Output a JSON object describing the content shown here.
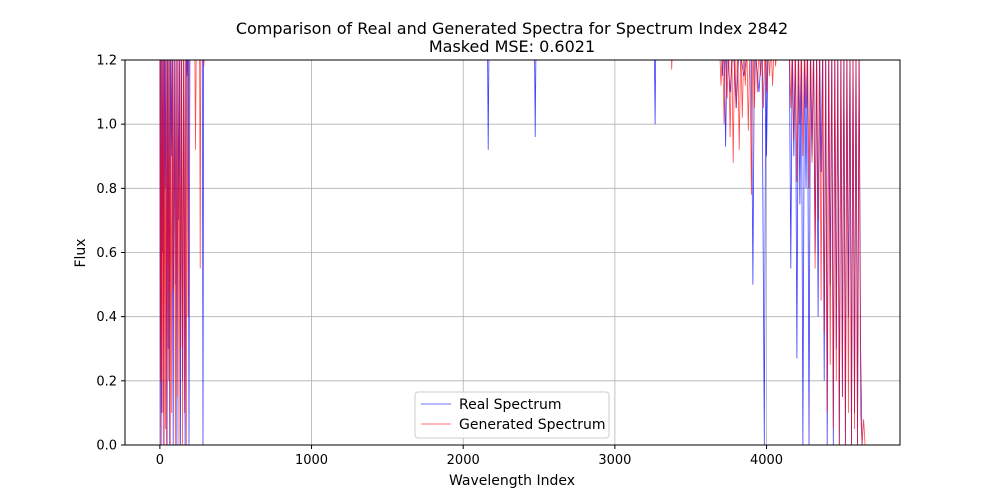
{
  "chart_data": {
    "type": "line",
    "title": "Comparison of Real and Generated Spectra for Spectrum Index 2842",
    "subtitle": "Masked MSE: 0.6021",
    "xlabel": "Wavelength Index",
    "ylabel": "Flux",
    "xlim": [
      -230,
      4880
    ],
    "ylim": [
      0.0,
      1.2
    ],
    "xticks": [
      0,
      1000,
      2000,
      3000,
      4000
    ],
    "yticks": [
      0.0,
      0.2,
      0.4,
      0.6,
      0.8,
      1.0,
      1.2
    ],
    "xtick_labels": [
      "0",
      "1000",
      "2000",
      "3000",
      "4000"
    ],
    "ytick_labels": [
      "0.0",
      "0.2",
      "0.4",
      "0.6",
      "0.8",
      "1.0",
      "1.2"
    ],
    "grid": true,
    "legend_position": "lower-center",
    "series": [
      {
        "name": "Real Spectrum",
        "color": "#0000ff",
        "segments": [
          [
            [
              0,
              1.25
            ],
            [
              3,
              0.0
            ],
            [
              6,
              1.25
            ],
            [
              10,
              0.1
            ],
            [
              14,
              1.25
            ],
            [
              18,
              0.6
            ],
            [
              22,
              1.25
            ],
            [
              26,
              0.0
            ],
            [
              30,
              1.25
            ],
            [
              35,
              0.8
            ],
            [
              40,
              1.25
            ],
            [
              45,
              0.0
            ],
            [
              50,
              1.25
            ],
            [
              55,
              0.3
            ],
            [
              60,
              1.25
            ],
            [
              65,
              0.0
            ],
            [
              70,
              1.25
            ],
            [
              76,
              0.9
            ],
            [
              82,
              1.25
            ],
            [
              88,
              0.0
            ],
            [
              94,
              1.25
            ],
            [
              100,
              0.5
            ],
            [
              106,
              1.25
            ],
            [
              112,
              0.0
            ],
            [
              118,
              1.25
            ],
            [
              124,
              0.7
            ],
            [
              130,
              1.25
            ],
            [
              136,
              0.0
            ],
            [
              142,
              1.25
            ],
            [
              150,
              0.2
            ],
            [
              158,
              1.25
            ],
            [
              166,
              0.0
            ],
            [
              174,
              1.25
            ],
            [
              180,
              1.15
            ],
            [
              186,
              1.25
            ],
            [
              192,
              0.0
            ],
            [
              198,
              1.25
            ]
          ],
          [
            [
              280,
              1.25
            ],
            [
              284,
              0.0
            ],
            [
              288,
              1.25
            ]
          ],
          [
            [
              2160,
              1.25
            ],
            [
              2165,
              0.92
            ],
            [
              2170,
              1.25
            ]
          ],
          [
            [
              2470,
              1.25
            ],
            [
              2475,
              0.96
            ],
            [
              2480,
              1.25
            ]
          ],
          [
            [
              3260,
              1.25
            ],
            [
              3265,
              1.0
            ],
            [
              3270,
              1.25
            ]
          ],
          [
            [
              3700,
              1.25
            ],
            [
              3710,
              1.15
            ],
            [
              3720,
              1.25
            ],
            [
              3730,
              0.93
            ],
            [
              3740,
              1.25
            ],
            [
              3760,
              1.1
            ],
            [
              3780,
              1.25
            ],
            [
              3800,
              1.05
            ],
            [
              3820,
              1.25
            ],
            [
              3850,
              1.15
            ],
            [
              3880,
              1.25
            ],
            [
              3900,
              1.2
            ],
            [
              3910,
              0.5
            ],
            [
              3920,
              1.25
            ],
            [
              3950,
              1.1
            ],
            [
              3970,
              1.25
            ],
            [
              3985,
              0.0
            ],
            [
              3995,
              1.25
            ],
            [
              4000,
              0.9
            ],
            [
              4010,
              1.25
            ]
          ],
          [
            [
              4150,
              1.25
            ],
            [
              4160,
              0.55
            ],
            [
              4170,
              1.25
            ],
            [
              4180,
              0.9
            ],
            [
              4190,
              1.25
            ],
            [
              4200,
              0.27
            ],
            [
              4210,
              1.25
            ],
            [
              4220,
              0.75
            ],
            [
              4230,
              1.25
            ],
            [
              4240,
              0.0
            ],
            [
              4250,
              1.25
            ],
            [
              4260,
              0.8
            ],
            [
              4270,
              1.25
            ],
            [
              4280,
              0.0
            ],
            [
              4290,
              1.25
            ],
            [
              4300,
              0.9
            ],
            [
              4310,
              1.25
            ],
            [
              4320,
              0.6
            ],
            [
              4330,
              1.25
            ],
            [
              4340,
              0.4
            ],
            [
              4350,
              1.25
            ],
            [
              4360,
              0.85
            ],
            [
              4370,
              1.25
            ],
            [
              4380,
              0.2
            ],
            [
              4390,
              1.25
            ],
            [
              4400,
              0.0
            ],
            [
              4410,
              1.25
            ],
            [
              4420,
              0.5
            ],
            [
              4430,
              1.25
            ],
            [
              4440,
              0.0
            ],
            [
              4450,
              1.25
            ],
            [
              4460,
              0.3
            ],
            [
              4470,
              1.25
            ],
            [
              4480,
              0.0
            ],
            [
              4490,
              1.25
            ],
            [
              4500,
              0.15
            ],
            [
              4510,
              1.25
            ],
            [
              4520,
              0.0
            ],
            [
              4530,
              1.25
            ],
            [
              4540,
              0.4
            ],
            [
              4550,
              1.25
            ],
            [
              4560,
              0.0
            ],
            [
              4570,
              1.25
            ],
            [
              4580,
              0.1
            ],
            [
              4590,
              1.25
            ],
            [
              4600,
              0.0
            ],
            [
              4610,
              1.25
            ],
            [
              4620,
              0.3
            ],
            [
              4630,
              0.0
            ]
          ]
        ]
      },
      {
        "name": "Generated Spectrum",
        "color": "#ff0000",
        "segments": [
          [
            [
              0,
              1.25
            ],
            [
              4,
              0.2
            ],
            [
              8,
              1.25
            ],
            [
              12,
              0.0
            ],
            [
              16,
              1.25
            ],
            [
              20,
              0.1
            ],
            [
              24,
              1.25
            ],
            [
              28,
              0.0
            ],
            [
              33,
              1.25
            ],
            [
              38,
              0.05
            ],
            [
              43,
              1.25
            ],
            [
              48,
              0.0
            ],
            [
              53,
              1.25
            ],
            [
              58,
              0.2
            ],
            [
              63,
              1.25
            ],
            [
              68,
              0.0
            ],
            [
              73,
              1.25
            ],
            [
              78,
              0.1
            ],
            [
              84,
              1.25
            ],
            [
              90,
              0.48
            ],
            [
              96,
              1.25
            ],
            [
              102,
              0.0
            ],
            [
              108,
              1.25
            ],
            [
              114,
              0.15
            ],
            [
              120,
              1.25
            ],
            [
              126,
              0.0
            ],
            [
              132,
              1.25
            ],
            [
              138,
              0.3
            ],
            [
              144,
              1.25
            ],
            [
              150,
              0.0
            ],
            [
              156,
              1.25
            ],
            [
              162,
              0.1
            ],
            [
              168,
              1.25
            ],
            [
              174,
              0.0
            ],
            [
              180,
              1.25
            ],
            [
              186,
              0.4
            ],
            [
              192,
              1.25
            ]
          ],
          [
            [
              230,
              1.25
            ],
            [
              235,
              0.92
            ],
            [
              240,
              1.25
            ],
            [
              262,
              1.25
            ],
            [
              266,
              0.55
            ],
            [
              270,
              1.25
            ],
            [
              285,
              1.25
            ],
            [
              290,
              1.18
            ],
            [
              295,
              1.25
            ]
          ],
          [
            [
              3370,
              1.25
            ],
            [
              3375,
              1.17
            ],
            [
              3380,
              1.25
            ]
          ],
          [
            [
              3690,
              1.25
            ],
            [
              3700,
              1.12
            ],
            [
              3710,
              1.25
            ],
            [
              3720,
              1.0
            ],
            [
              3730,
              1.25
            ],
            [
              3740,
              1.08
            ],
            [
              3750,
              1.25
            ],
            [
              3760,
              0.96
            ],
            [
              3770,
              1.25
            ],
            [
              3780,
              0.88
            ],
            [
              3790,
              1.25
            ],
            [
              3800,
              1.05
            ],
            [
              3810,
              1.25
            ],
            [
              3820,
              0.92
            ],
            [
              3830,
              1.25
            ],
            [
              3840,
              1.02
            ],
            [
              3850,
              1.25
            ],
            [
              3860,
              1.12
            ],
            [
              3870,
              1.25
            ],
            [
              3880,
              0.98
            ],
            [
              3890,
              1.25
            ],
            [
              3900,
              0.78
            ],
            [
              3910,
              1.25
            ],
            [
              3920,
              1.05
            ],
            [
              3930,
              1.25
            ],
            [
              3940,
              1.1
            ],
            [
              3950,
              1.25
            ],
            [
              3960,
              1.15
            ],
            [
              3970,
              1.25
            ],
            [
              3980,
              1.05
            ],
            [
              3990,
              1.25
            ],
            [
              4000,
              1.1
            ],
            [
              4010,
              1.25
            ],
            [
              4020,
              1.15
            ],
            [
              4030,
              1.25
            ],
            [
              4040,
              1.12
            ],
            [
              4050,
              1.25
            ],
            [
              4060,
              1.18
            ],
            [
              4070,
              1.25
            ]
          ],
          [
            [
              4150,
              1.25
            ],
            [
              4160,
              1.05
            ],
            [
              4170,
              1.25
            ],
            [
              4180,
              0.95
            ],
            [
              4190,
              1.25
            ],
            [
              4200,
              0.82
            ],
            [
              4210,
              1.25
            ],
            [
              4220,
              1.0
            ],
            [
              4230,
              1.25
            ],
            [
              4240,
              0.9
            ],
            [
              4250,
              1.25
            ],
            [
              4260,
              1.05
            ],
            [
              4270,
              1.25
            ],
            [
              4280,
              0.8
            ],
            [
              4290,
              1.25
            ],
            [
              4300,
              0.88
            ],
            [
              4310,
              1.25
            ],
            [
              4320,
              0.55
            ],
            [
              4330,
              1.25
            ],
            [
              4340,
              0.7
            ],
            [
              4350,
              1.25
            ],
            [
              4360,
              0.45
            ],
            [
              4370,
              1.25
            ],
            [
              4380,
              0.35
            ],
            [
              4390,
              1.25
            ],
            [
              4400,
              0.1
            ],
            [
              4410,
              1.25
            ],
            [
              4420,
              0.25
            ],
            [
              4430,
              1.25
            ],
            [
              4440,
              0.05
            ],
            [
              4450,
              1.25
            ],
            [
              4460,
              0.2
            ],
            [
              4470,
              1.25
            ],
            [
              4480,
              0.0
            ],
            [
              4490,
              1.25
            ],
            [
              4500,
              0.15
            ],
            [
              4510,
              1.25
            ],
            [
              4520,
              0.0
            ],
            [
              4530,
              1.25
            ],
            [
              4540,
              0.1
            ],
            [
              4550,
              1.25
            ],
            [
              4560,
              0.0
            ],
            [
              4570,
              1.25
            ],
            [
              4580,
              0.05
            ],
            [
              4590,
              1.25
            ],
            [
              4600,
              0.0
            ],
            [
              4610,
              1.25
            ],
            [
              4620,
              0.1
            ],
            [
              4630,
              0.0
            ],
            [
              4640,
              0.08
            ],
            [
              4650,
              0.0
            ]
          ]
        ]
      }
    ]
  }
}
